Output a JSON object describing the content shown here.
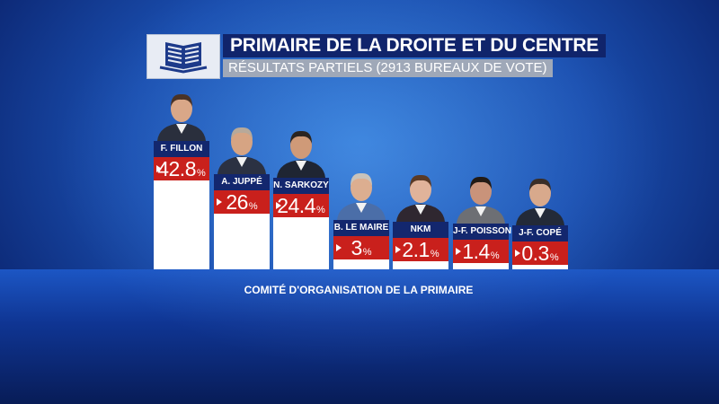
{
  "header": {
    "title": "PRIMAIRE DE LA DROITE ET DU CENTRE",
    "subtitle": "RÉSULTATS PARTIELS (2913 BUREAUX DE VOTE)"
  },
  "footer": {
    "source": "COMITÉ D'ORGANISATION DE LA PRIMAIRE"
  },
  "colors": {
    "value_box": "#c9201c",
    "name_box": "#13276e",
    "bar": "#ffffff",
    "title_bg": "#10246b"
  },
  "chart_data": {
    "type": "bar",
    "title": "PRIMAIRE DE LA DROITE ET DU CENTRE",
    "subtitle": "RÉSULTATS PARTIELS (2913 BUREAUX DE VOTE)",
    "unit": "%",
    "categories": [
      "F. FILLON",
      "A. JUPPÉ",
      "N. SARKOZY",
      "B. LE MAIRE",
      "NKM",
      "J-F. POISSON",
      "J-F. COPÉ"
    ],
    "values": [
      42.8,
      26,
      24.4,
      3,
      2.1,
      1.4,
      0.3
    ],
    "value_labels": [
      "42.8",
      "26",
      "24.4",
      "3",
      "2.1",
      "1.4",
      "0.3"
    ]
  }
}
